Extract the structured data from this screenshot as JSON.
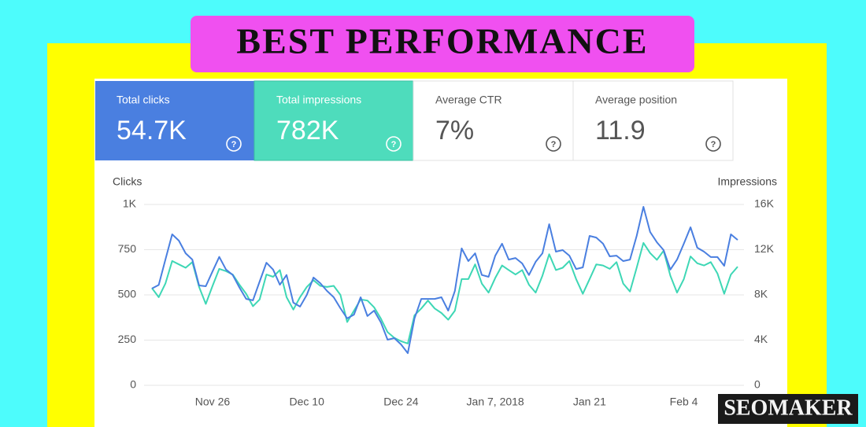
{
  "banner": "BEST PERFORMANCE",
  "watermark": "SEOMAKER",
  "cards": [
    {
      "label": "Total clicks",
      "value": "54.7K"
    },
    {
      "label": "Total impressions",
      "value": "782K"
    },
    {
      "label": "Average CTR",
      "value": "7%"
    },
    {
      "label": "Average position",
      "value": "11.9"
    }
  ],
  "chart_data": {
    "type": "line",
    "y_label": "Clicks",
    "y2_label": "Impressions",
    "categories": [
      null,
      null,
      null,
      null,
      null,
      null,
      null,
      null,
      null,
      "Nov 26",
      null,
      null,
      null,
      null,
      null,
      null,
      null,
      null,
      null,
      null,
      null,
      null,
      null,
      "Dec 10",
      null,
      null,
      null,
      null,
      null,
      null,
      null,
      null,
      null,
      null,
      null,
      null,
      null,
      "Dec 24",
      null,
      null,
      null,
      null,
      null,
      null,
      null,
      null,
      null,
      null,
      null,
      null,
      null,
      "Jan 7, 2018",
      null,
      null,
      null,
      null,
      null,
      null,
      null,
      null,
      null,
      null,
      null,
      null,
      null,
      "Jan 21",
      null,
      null,
      null,
      null,
      null,
      null,
      null,
      null,
      null,
      null,
      null,
      null,
      null,
      "Feb 4",
      null,
      null,
      null,
      null,
      null,
      null,
      null,
      null
    ],
    "series": [
      {
        "name": "Clicks",
        "color": "#4a7fe0",
        "axis": "y",
        "values": [
          535,
          555,
          695,
          835,
          800,
          730,
          695,
          552,
          548,
          630,
          710,
          640,
          610,
          540,
          478,
          470,
          574,
          678,
          640,
          556,
          610,
          457,
          435,
          500,
          596,
          565,
          522,
          487,
          426,
          370,
          391,
          487,
          383,
          413,
          348,
          252,
          261,
          226,
          178,
          370,
          478,
          478,
          478,
          487,
          413,
          522,
          757,
          687,
          730,
          610,
          600,
          717,
          783,
          695,
          704,
          674,
          610,
          683,
          730,
          891,
          739,
          748,
          717,
          643,
          652,
          826,
          817,
          783,
          713,
          717,
          687,
          695,
          826,
          987,
          848,
          791,
          748,
          640,
          695,
          783,
          874,
          761,
          739,
          709,
          709,
          661,
          835,
          804
        ]
      },
      {
        "name": "Impressions",
        "color": "#3ed7b5",
        "axis": "y2",
        "values": [
          8600,
          7800,
          9000,
          11000,
          10700,
          10400,
          10900,
          8700,
          7200,
          8800,
          10300,
          10100,
          9800,
          8900,
          8100,
          7000,
          7600,
          9800,
          9600,
          10200,
          7800,
          6700,
          7800,
          8700,
          9300,
          8800,
          8700,
          8800,
          8000,
          5600,
          6600,
          7600,
          7500,
          6900,
          5900,
          4700,
          4200,
          3900,
          3700,
          6200,
          6800,
          7500,
          6800,
          6400,
          5800,
          6600,
          9400,
          9400,
          10700,
          9000,
          8200,
          9500,
          10600,
          10200,
          9800,
          10200,
          8900,
          8200,
          9700,
          11600,
          10200,
          10400,
          11000,
          9400,
          8100,
          9400,
          10700,
          10600,
          10300,
          10900,
          9000,
          8300,
          10400,
          12600,
          11700,
          11100,
          11900,
          9700,
          8200,
          9400,
          11400,
          10800,
          10600,
          10900,
          9900,
          8100,
          9800,
          10500
        ]
      }
    ],
    "ylim": [
      0,
      1000
    ],
    "yticks": [
      0,
      250,
      500,
      750,
      {
        "value": 1000,
        "label": "1K"
      }
    ],
    "y2lim": [
      0,
      16000
    ],
    "y2ticks": [
      0,
      {
        "value": 4000,
        "label": "4K"
      },
      {
        "value": 8000,
        "label": "8K"
      },
      {
        "value": 12000,
        "label": "12K"
      },
      {
        "value": 16000,
        "label": "16K"
      }
    ],
    "grid": true
  }
}
